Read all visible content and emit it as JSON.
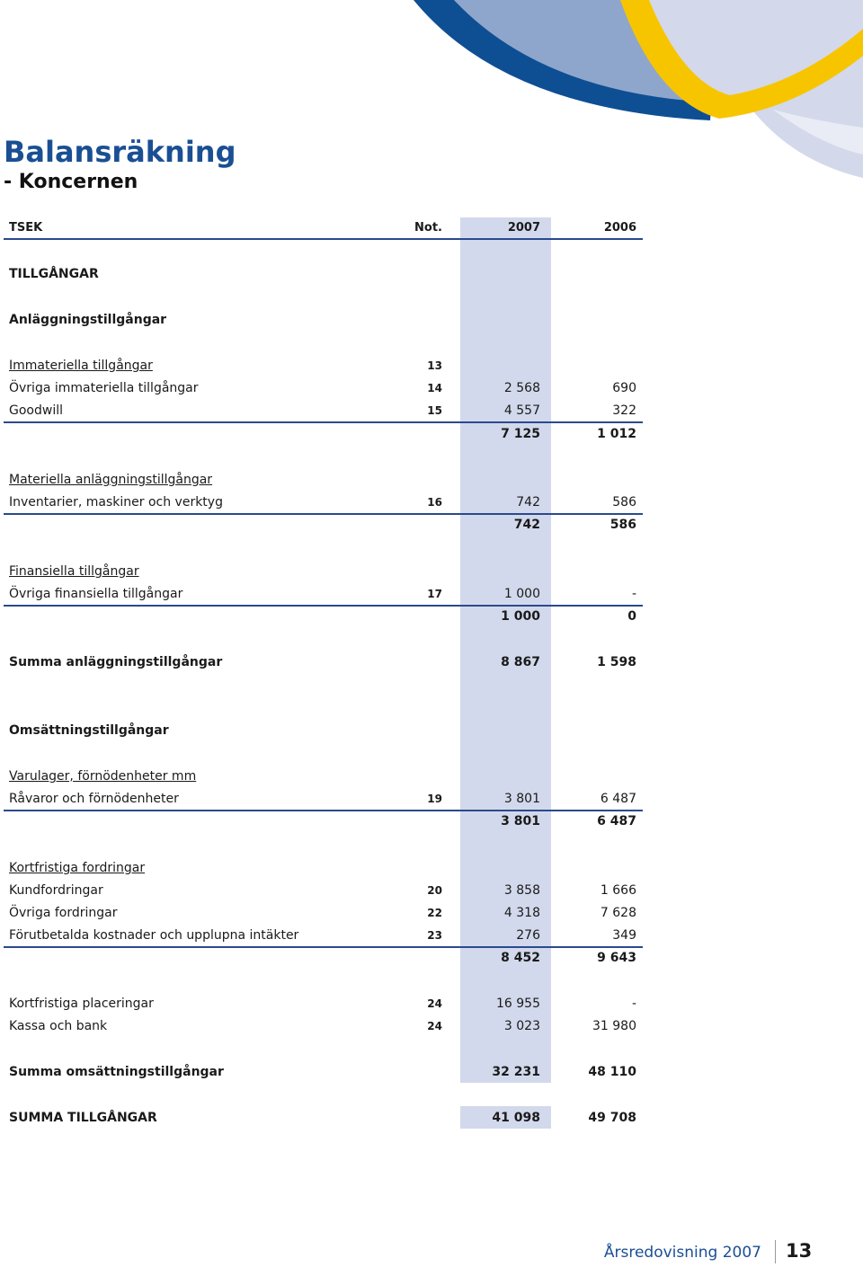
{
  "header": {
    "title": "Balansräkning",
    "subtitle": "- Koncernen"
  },
  "table": {
    "columns": [
      "TSEK",
      "Not.",
      "2007",
      "2006"
    ],
    "rows": [
      {
        "label": "TILLGÅNGAR"
      },
      {
        "label": "Anläggningstillgångar"
      },
      {
        "label": "Immateriella tillgångar",
        "note": "13"
      },
      {
        "label": "Övriga immateriella tillgångar",
        "note": "14",
        "y2007": "2 568",
        "y2006": "690"
      },
      {
        "label": "Goodwill",
        "note": "15",
        "y2007": "4 557",
        "y2006": "322"
      },
      {
        "y2007": "7 125",
        "y2006": "1 012"
      },
      {
        "label": "Materiella anläggningstillgångar"
      },
      {
        "label": "Inventarier, maskiner och verktyg",
        "note": "16",
        "y2007": "742",
        "y2006": "586"
      },
      {
        "y2007": "742",
        "y2006": "586"
      },
      {
        "label": "Finansiella tillgångar"
      },
      {
        "label": "Övriga finansiella tillgångar",
        "note": "17",
        "y2007": "1 000",
        "y2006": "-"
      },
      {
        "y2007": "1 000",
        "y2006": "0"
      },
      {
        "label": "Summa anläggningstillgångar",
        "y2007": "8 867",
        "y2006": "1 598"
      },
      {
        "label": "Omsättningstillgångar"
      },
      {
        "label": "Varulager, förnödenheter mm"
      },
      {
        "label": "Råvaror och förnödenheter",
        "note": "19",
        "y2007": "3 801",
        "y2006": "6 487"
      },
      {
        "y2007": "3 801",
        "y2006": "6 487"
      },
      {
        "label": "Kortfristiga fordringar"
      },
      {
        "label": "Kundfordringar",
        "note": "20",
        "y2007": "3 858",
        "y2006": "1 666"
      },
      {
        "label": "Övriga fordringar",
        "note": "22",
        "y2007": "4 318",
        "y2006": "7 628"
      },
      {
        "label": "Förutbetalda kostnader och upplupna intäkter",
        "note": "23",
        "y2007": "276",
        "y2006": "349"
      },
      {
        "y2007": "8 452",
        "y2006": "9 643"
      },
      {
        "label": "Kortfristiga placeringar",
        "note": "24",
        "y2007": "16 955",
        "y2006": "-"
      },
      {
        "label": "Kassa och bank",
        "note": "24",
        "y2007": "3 023",
        "y2006": "31 980"
      },
      {
        "label": "Summa omsättningstillgångar",
        "y2007": "32 231",
        "y2006": "48 110"
      },
      {
        "label": "SUMMA TILLGÅNGAR",
        "y2007": "41 098",
        "y2006": "49 708"
      }
    ]
  },
  "footer": {
    "text": "Årsredovisning 2007",
    "page": "13"
  }
}
